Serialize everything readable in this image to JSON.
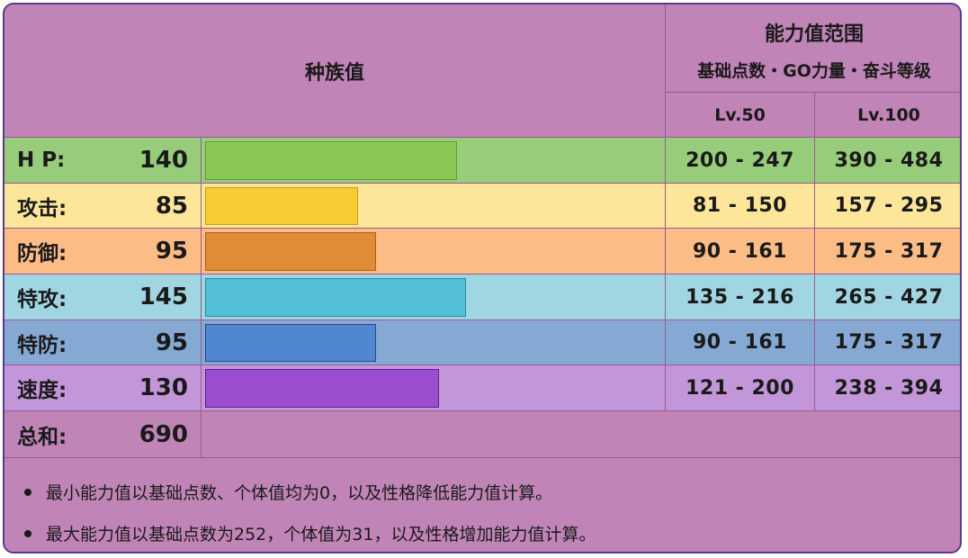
{
  "header": {
    "base_stats": "种族值",
    "stat_range": "能力值范围",
    "range_sub": "基础点数・GO力量・奋斗等级",
    "lv50": "Lv.50",
    "lv100": "Lv.100"
  },
  "rows": [
    {
      "label": "H P:",
      "value": "140",
      "lv50": "200 - 247",
      "lv100": "390 - 484",
      "bar_fraction": 0.56,
      "row_color": "#97cc7a",
      "bar_color": "#89c856",
      "bar_border": "#5f9a35"
    },
    {
      "label": "攻击:",
      "value": "85",
      "lv50": "81 - 150",
      "lv100": "157 - 295",
      "bar_fraction": 0.34,
      "row_color": "#fde59a",
      "bar_color": "#f8ca33",
      "bar_border": "#caa012"
    },
    {
      "label": "防御:",
      "value": "95",
      "lv50": "90 - 161",
      "lv100": "175 - 317",
      "bar_fraction": 0.38,
      "row_color": "#fcbc86",
      "bar_color": "#e08b35",
      "bar_border": "#a8621e"
    },
    {
      "label": "特攻:",
      "value": "145",
      "lv50": "135 - 216",
      "lv100": "265 - 427",
      "bar_fraction": 0.58,
      "row_color": "#a0d6e2",
      "bar_color": "#53c0d8",
      "bar_border": "#2a8aa3"
    },
    {
      "label": "特防:",
      "value": "95",
      "lv50": "90 - 161",
      "lv100": "175 - 317",
      "bar_fraction": 0.38,
      "row_color": "#86a9d4",
      "bar_color": "#5087cf",
      "bar_border": "#1e4f95"
    },
    {
      "label": "速度:",
      "value": "130",
      "lv50": "121 - 200",
      "lv100": "238 - 394",
      "bar_fraction": 0.52,
      "row_color": "#c296d8",
      "bar_color": "#9b4fd0",
      "bar_border": "#5e1f8f"
    }
  ],
  "total": {
    "label": "总和:",
    "value": "690"
  },
  "notes": [
    "最小能力值以基础点数、个体值均为0，以及性格降低能力值计算。",
    "最大能力值以基础点数为252，个体值为31，以及性格增加能力值计算。"
  ]
}
